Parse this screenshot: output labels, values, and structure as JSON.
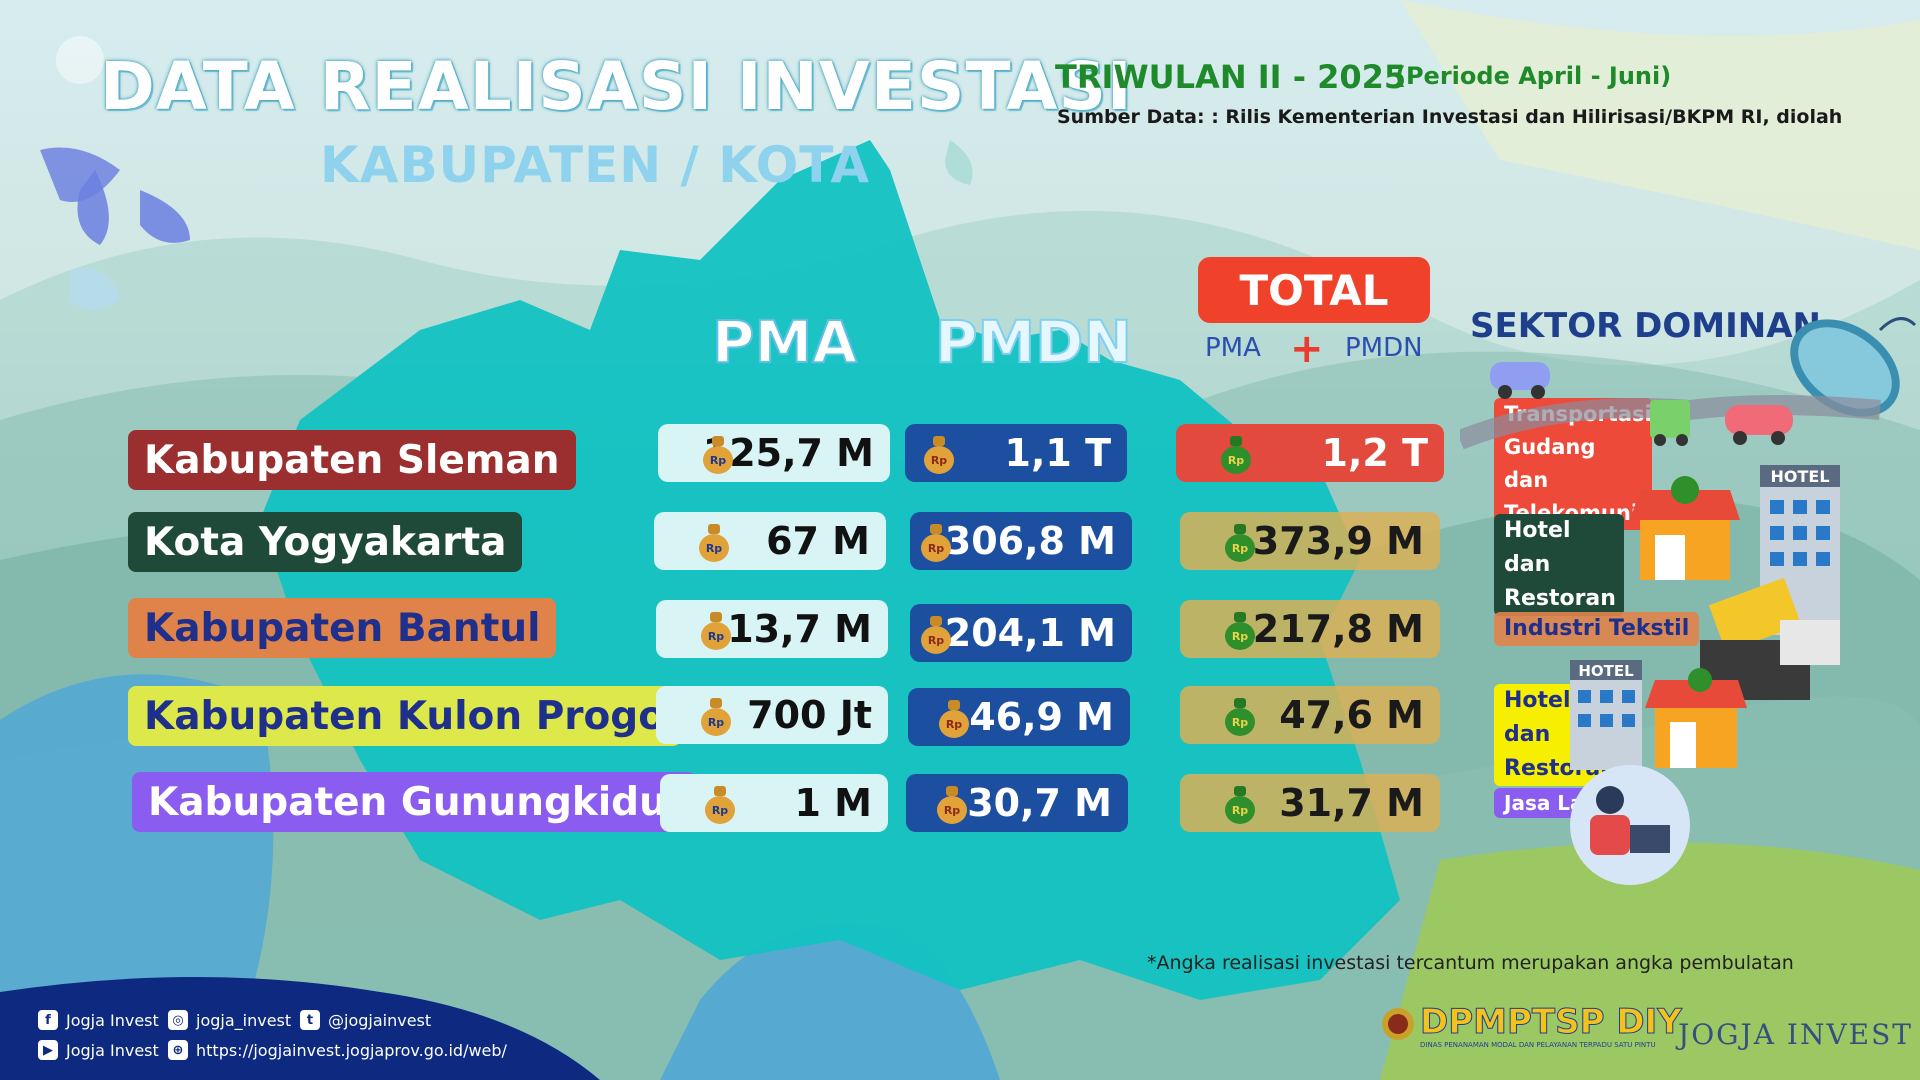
{
  "header": {
    "title": "DATA REALISASI INVESTASI",
    "subtitle": "KABUPATEN / KOTA",
    "period": "TRIWULAN II - 2025",
    "period_range": "(Periode April - Juni)",
    "source": "Sumber Data: : Rilis Kementerian Investasi dan Hilirisasi/BKPM RI, diolah"
  },
  "columns": {
    "pma": "PMA",
    "pmdn": "PMDN",
    "total": "TOTAL",
    "total_pma": "PMA",
    "total_plus": "+",
    "total_pmdn": "PMDN",
    "sektor": "SEKTOR DOMINAN"
  },
  "rows": [
    {
      "region": "Kabupaten Sleman",
      "pma": "125,7 M",
      "pmdn": "1,1 T",
      "total": "1,2 T",
      "sektor": "Transportasi, Gudang dan Telekomunikasi",
      "label_bg": "#9b2f2f",
      "label_fg": "#ffffff"
    },
    {
      "region": "Kota Yogyakarta",
      "pma": "67 M",
      "pmdn": "306,8 M",
      "total": "373,9 M",
      "sektor": "Hotel dan Restoran",
      "label_bg": "#1f4a3a",
      "label_fg": "#ffffff"
    },
    {
      "region": "Kabupaten Bantul",
      "pma": "13,7 M",
      "pmdn": "204,1 M",
      "total": "217,8 M",
      "sektor": "Industri Tekstil",
      "label_bg": "#e0834a",
      "label_fg": "#1f2f8c"
    },
    {
      "region": "Kabupaten Kulon Progo",
      "pma": "700 Jt",
      "pmdn": "46,9 M",
      "total": "47,6 M",
      "sektor": "Hotel dan Restoran",
      "label_bg": "#dde84a",
      "label_fg": "#1f2f8c"
    },
    {
      "region": "Kabupaten Gunungkidul",
      "pma": "1 M",
      "pmdn": "30,7 M",
      "total": "31,7 M",
      "sektor": "Jasa Lainnya",
      "label_bg": "#8a5cf0",
      "label_fg": "#ffffff"
    }
  ],
  "icons": {
    "money_bag": "money-bag-icon",
    "hotel_sign": "HOTEL",
    "currency": "Rp"
  },
  "note": "*Angka realisasi investasi tercantum merupakan angka pembulatan",
  "footer": {
    "facebook": "Jogja Invest",
    "instagram": "jogja_invest",
    "twitter": "@jogjainvest",
    "youtube": "Jogja Invest",
    "website": "https://jogjainvest.jogjaprov.go.id/web/",
    "logo_dpm": "DPMPTSP DIY",
    "logo_dpm_sub": "DINAS PENANAMAN MODAL DAN PELAYANAN TERPADU SATU PINTU",
    "logo_jogja": "JOGJA INVEST"
  },
  "colors": {
    "map": "#12c2c2",
    "total_accent": "#f0422b",
    "pmdn_pill": "#1c4fa0",
    "pma_pill": "#d8f4f4",
    "total_pill": "#dab056",
    "footer": "#0d2a80"
  }
}
